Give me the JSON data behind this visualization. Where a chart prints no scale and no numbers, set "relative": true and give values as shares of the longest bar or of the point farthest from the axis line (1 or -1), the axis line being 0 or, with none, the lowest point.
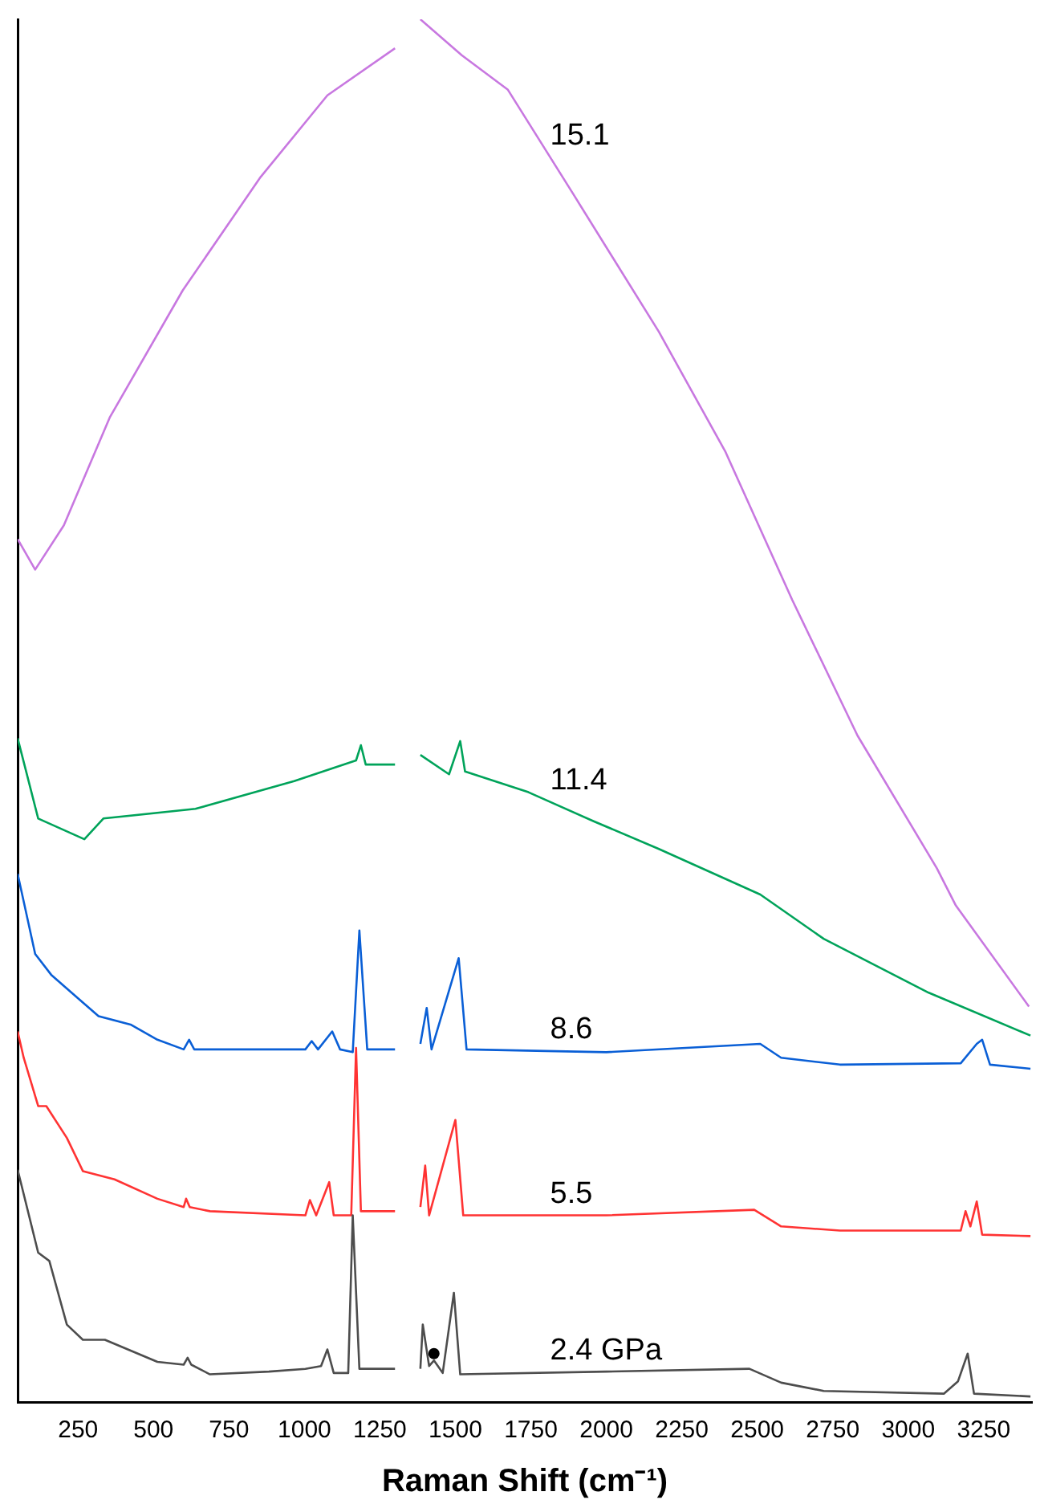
{
  "chart_data": {
    "type": "line",
    "relative": true,
    "xlabel": "Raman Shift (cm⁻¹)",
    "xlim": [
      50,
      3410
    ],
    "xticks": [
      250,
      500,
      750,
      1000,
      1250,
      1500,
      1750,
      2000,
      2250,
      2500,
      2750,
      3000,
      3250
    ],
    "series": [
      {
        "type": "scatter",
        "marker": "circle",
        "color": "#000000",
        "x": [
          1429
        ],
        "values": [
          0.035
        ]
      },
      {
        "name": "2.4 GPa",
        "color": "#4d4d4d",
        "x": [
          50,
          118,
          155,
          213,
          266,
          339,
          513,
          600,
          613,
          625,
          687,
          882,
          1003,
          1055,
          1076,
          1097,
          1145,
          1160,
          1182,
          1300,
          1340,
          1384,
          1392,
          1413,
          1429,
          1458,
          1495,
          1516,
          2000,
          2474,
          2579,
          2720,
          3118,
          3165,
          3197,
          3218,
          3405
        ],
        "values": [
          0.168,
          0.108,
          0.102,
          0.056,
          0.045,
          0.045,
          0.029,
          0.027,
          0.032,
          0.027,
          0.02,
          0.022,
          0.024,
          0.026,
          0.038,
          0.021,
          0.021,
          0.135,
          0.024,
          0.024,
          null,
          0.024,
          0.056,
          0.026,
          0.03,
          0.021,
          0.079,
          0.02,
          0.022,
          0.024,
          0.014,
          0.008,
          0.006,
          0.015,
          0.035,
          0.006,
          0.004
        ]
      },
      {
        "name": "5.5",
        "color": "#ff3333",
        "x": [
          50,
          70,
          118,
          145,
          213,
          266,
          371,
          513,
          600,
          608,
          620,
          687,
          1003,
          1018,
          1039,
          1082,
          1097,
          1155,
          1171,
          1187,
          1300,
          1340,
          1384,
          1400,
          1413,
          1500,
          1526,
          2000,
          2490,
          2579,
          2774,
          3174,
          3190,
          3206,
          3227,
          3245,
          3405
        ],
        "values": [
          0.268,
          0.249,
          0.214,
          0.214,
          0.191,
          0.167,
          0.161,
          0.147,
          0.141,
          0.147,
          0.141,
          0.138,
          0.135,
          0.146,
          0.135,
          0.159,
          0.135,
          0.135,
          0.256,
          0.138,
          0.138,
          null,
          0.141,
          0.171,
          0.135,
          0.204,
          0.135,
          0.135,
          0.139,
          0.127,
          0.124,
          0.124,
          0.138,
          0.127,
          0.145,
          0.121,
          0.12
        ]
      },
      {
        "name": "8.6",
        "color": "#0a5fd6",
        "x": [
          50,
          108,
          161,
          250,
          318,
          424,
          513,
          600,
          618,
          635,
          687,
          1003,
          1024,
          1045,
          1092,
          1118,
          1160,
          1182,
          1208,
          1300,
          1340,
          1384,
          1405,
          1421,
          1511,
          1537,
          2000,
          2510,
          2579,
          2774,
          3174,
          3227,
          3245,
          3271,
          3405
        ],
        "values": [
          0.382,
          0.324,
          0.309,
          0.292,
          0.279,
          0.273,
          0.262,
          0.255,
          0.262,
          0.255,
          0.255,
          0.255,
          0.261,
          0.255,
          0.268,
          0.255,
          0.253,
          0.341,
          0.255,
          0.255,
          null,
          0.259,
          0.285,
          0.255,
          0.321,
          0.255,
          0.253,
          0.259,
          0.249,
          0.244,
          0.245,
          0.259,
          0.262,
          0.244,
          0.241
        ]
      },
      {
        "name": "11.4",
        "color": "#00a35a",
        "x": [
          50,
          118,
          271,
          334,
          639,
          966,
          1171,
          1187,
          1203,
          1300,
          1340,
          1384,
          1479,
          1516,
          1532,
          1742,
          1958,
          2174,
          2510,
          2720,
          3068,
          3405
        ],
        "values": [
          0.48,
          0.422,
          0.407,
          0.422,
          0.429,
          0.449,
          0.464,
          0.475,
          0.461,
          0.461,
          null,
          0.468,
          0.454,
          0.478,
          0.456,
          0.441,
          0.42,
          0.4,
          0.367,
          0.335,
          0.296,
          0.265
        ]
      },
      {
        "name": "15.1",
        "color": "#c878e0",
        "x": [
          50,
          108,
          203,
          355,
          597,
          855,
          1076,
          1300,
          1340,
          1384,
          1521,
          1674,
          1895,
          2174,
          2395,
          2616,
          2832,
          3095,
          3158,
          3400
        ],
        "values": [
          0.624,
          0.602,
          0.634,
          0.712,
          0.804,
          0.886,
          0.945,
          0.979,
          null,
          1.0,
          0.974,
          0.949,
          0.872,
          0.774,
          0.687,
          0.58,
          0.482,
          0.386,
          0.359,
          0.286
        ]
      }
    ]
  }
}
